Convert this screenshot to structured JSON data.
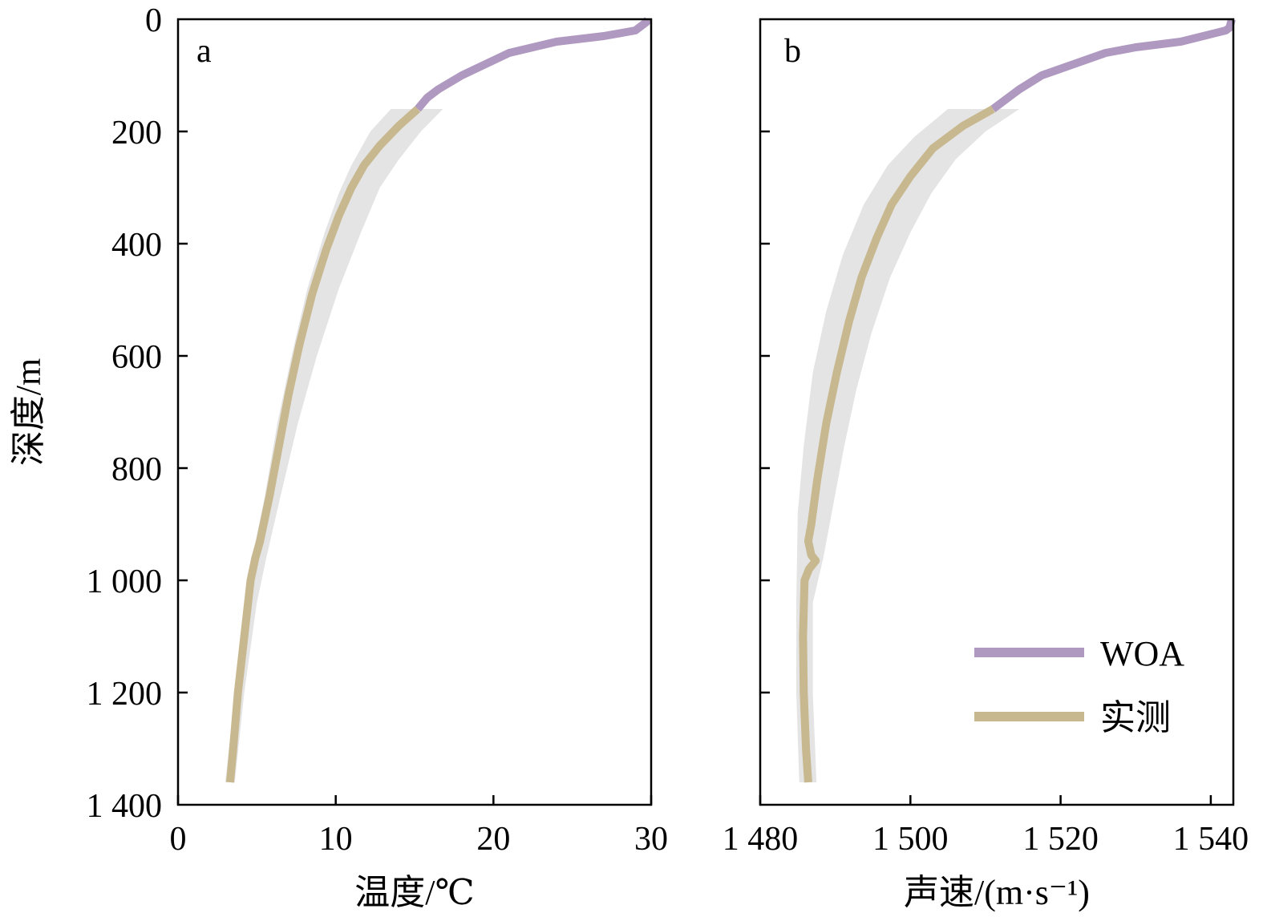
{
  "chart_data": [
    {
      "type": "line",
      "panel_label": "a",
      "xlabel": "温度/℃",
      "ylabel": "深度/m",
      "xlim": [
        0,
        30
      ],
      "ylim": [
        1400,
        0
      ],
      "y_inverted": true,
      "x_ticks": [
        0,
        10,
        20,
        30
      ],
      "x_tick_labels": [
        "0",
        "10",
        "20",
        "30"
      ],
      "y_ticks": [
        0,
        200,
        400,
        600,
        800,
        1000,
        1200,
        1400
      ],
      "y_tick_labels": [
        "0",
        "200",
        "400",
        "600",
        "800",
        "1 000",
        "1 200",
        "1 400"
      ],
      "grid": false,
      "series": [
        {
          "name": "WOA",
          "color": "#b099c0",
          "points": [
            [
              29.8,
              0
            ],
            [
              29.7,
              5
            ],
            [
              29.0,
              20
            ],
            [
              27.0,
              30
            ],
            [
              24.0,
              40
            ],
            [
              21.0,
              60
            ],
            [
              18.0,
              100
            ],
            [
              16.5,
              125
            ],
            [
              15.8,
              140
            ],
            [
              15.2,
              160
            ]
          ]
        },
        {
          "name": "实测",
          "color": "#c8b890",
          "points": [
            [
              15.2,
              160
            ],
            [
              14.0,
              190
            ],
            [
              12.8,
              225
            ],
            [
              11.8,
              260
            ],
            [
              11.0,
              300
            ],
            [
              10.2,
              350
            ],
            [
              9.4,
              410
            ],
            [
              8.5,
              490
            ],
            [
              7.7,
              580
            ],
            [
              7.0,
              670
            ],
            [
              6.4,
              760
            ],
            [
              5.8,
              850
            ],
            [
              5.2,
              930
            ],
            [
              4.9,
              960
            ],
            [
              4.6,
              1000
            ],
            [
              4.2,
              1100
            ],
            [
              3.8,
              1200
            ],
            [
              3.5,
              1300
            ],
            [
              3.3,
              1360
            ]
          ]
        }
      ],
      "band": {
        "color": "#d8d8d8",
        "lower": [
          [
            13.5,
            160
          ],
          [
            12.2,
            200
          ],
          [
            11.0,
            260
          ],
          [
            10.2,
            310
          ],
          [
            9.3,
            380
          ],
          [
            8.2,
            480
          ],
          [
            7.2,
            600
          ],
          [
            6.3,
            720
          ],
          [
            5.5,
            850
          ],
          [
            4.7,
            960
          ],
          [
            4.2,
            1040
          ],
          [
            3.6,
            1200
          ],
          [
            3.0,
            1360
          ]
        ],
        "upper": [
          [
            16.8,
            160
          ],
          [
            15.4,
            200
          ],
          [
            14.0,
            250
          ],
          [
            12.8,
            300
          ],
          [
            11.6,
            380
          ],
          [
            10.2,
            480
          ],
          [
            8.8,
            600
          ],
          [
            7.6,
            720
          ],
          [
            6.5,
            850
          ],
          [
            5.6,
            960
          ],
          [
            5.0,
            1040
          ],
          [
            4.2,
            1200
          ],
          [
            3.6,
            1360
          ]
        ]
      }
    },
    {
      "type": "line",
      "panel_label": "b",
      "xlabel": "声速/(m·s⁻¹)",
      "ylabel": "",
      "xlim": [
        1480,
        1543
      ],
      "ylim": [
        1400,
        0
      ],
      "y_inverted": true,
      "x_ticks": [
        1480,
        1500,
        1520,
        1540
      ],
      "x_tick_labels": [
        "1 480",
        "1 500",
        "1 520",
        "1 540"
      ],
      "y_ticks": [
        0,
        200,
        400,
        600,
        800,
        1000,
        1200,
        1400
      ],
      "grid": false,
      "series": [
        {
          "name": "WOA",
          "color": "#b099c0",
          "points": [
            [
              1542.8,
              0
            ],
            [
              1542.5,
              15
            ],
            [
              1542.0,
              20
            ],
            [
              1536.0,
              40
            ],
            [
              1530.0,
              50
            ],
            [
              1526.0,
              60
            ],
            [
              1517.5,
              100
            ],
            [
              1514.5,
              125
            ],
            [
              1513.0,
              140
            ],
            [
              1511.0,
              160
            ]
          ]
        },
        {
          "name": "实测",
          "color": "#c8b890",
          "points": [
            [
              1511.0,
              160
            ],
            [
              1507.0,
              190
            ],
            [
              1503.0,
              230
            ],
            [
              1500.0,
              280
            ],
            [
              1497.5,
              330
            ],
            [
              1495.5,
              390
            ],
            [
              1493.5,
              460
            ],
            [
              1491.8,
              540
            ],
            [
              1490.2,
              630
            ],
            [
              1488.8,
              720
            ],
            [
              1487.6,
              820
            ],
            [
              1486.8,
              900
            ],
            [
              1486.4,
              930
            ],
            [
              1486.8,
              955
            ],
            [
              1487.4,
              965
            ],
            [
              1486.5,
              980
            ],
            [
              1485.9,
              1000
            ],
            [
              1485.7,
              1100
            ],
            [
              1485.8,
              1200
            ],
            [
              1486.1,
              1300
            ],
            [
              1486.4,
              1360
            ]
          ]
        }
      ],
      "band": {
        "color": "#d8d8d8",
        "lower": [
          [
            1505.0,
            160
          ],
          [
            1500.5,
            210
          ],
          [
            1497.0,
            260
          ],
          [
            1493.8,
            330
          ],
          [
            1491.0,
            420
          ],
          [
            1488.8,
            520
          ],
          [
            1487.0,
            630
          ],
          [
            1485.8,
            760
          ],
          [
            1485.0,
            880
          ],
          [
            1484.9,
            960
          ],
          [
            1484.8,
            1040
          ],
          [
            1484.8,
            1200
          ],
          [
            1485.2,
            1360
          ]
        ],
        "upper": [
          [
            1514.5,
            160
          ],
          [
            1510.0,
            200
          ],
          [
            1506.0,
            250
          ],
          [
            1502.8,
            310
          ],
          [
            1500.0,
            380
          ],
          [
            1497.3,
            460
          ],
          [
            1494.8,
            560
          ],
          [
            1492.8,
            660
          ],
          [
            1491.2,
            760
          ],
          [
            1489.8,
            860
          ],
          [
            1488.4,
            960
          ],
          [
            1487.0,
            1040
          ],
          [
            1487.0,
            1200
          ],
          [
            1487.5,
            1360
          ]
        ]
      }
    }
  ],
  "legend": {
    "placement": "bottom-right",
    "items": [
      {
        "name": "WOA",
        "color": "#b099c0"
      },
      {
        "name": "实测",
        "color": "#c8b890"
      }
    ]
  }
}
